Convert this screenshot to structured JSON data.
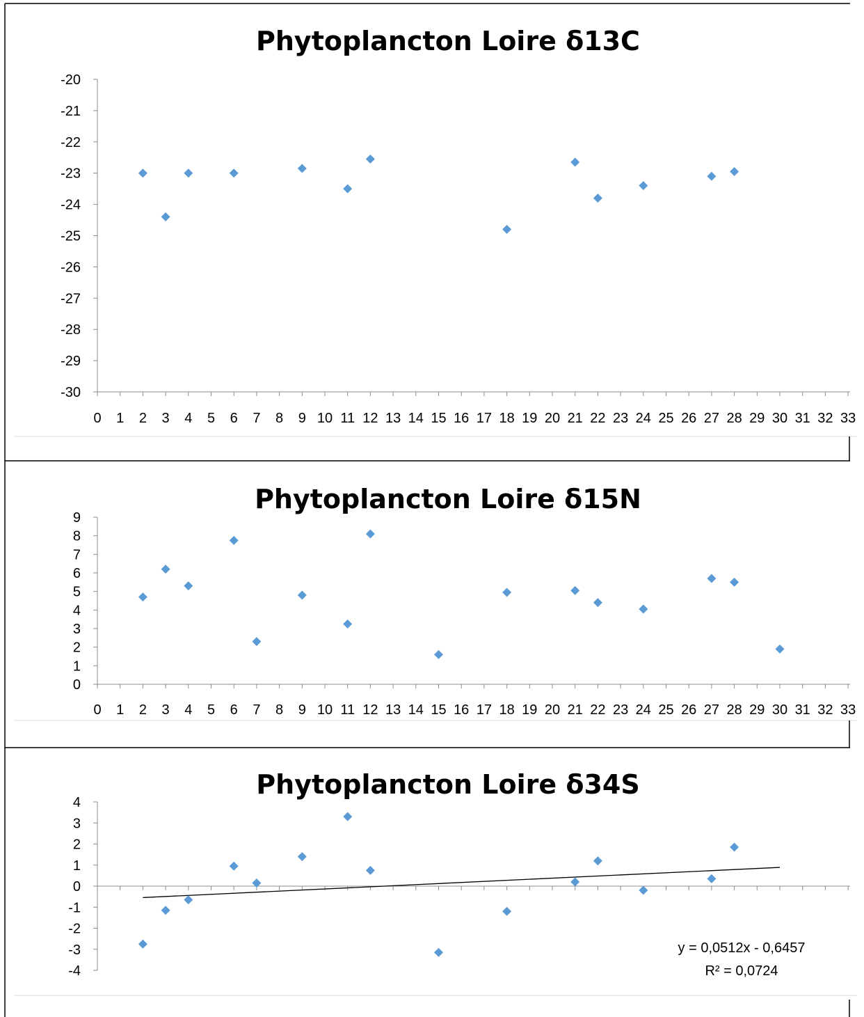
{
  "chart_data": [
    {
      "type": "scatter",
      "title": "Phytoplancton Loire δ13C",
      "xlim": [
        0,
        33
      ],
      "ylim": [
        -30,
        -20
      ],
      "xticks": [
        0,
        1,
        2,
        3,
        4,
        5,
        6,
        7,
        8,
        9,
        10,
        11,
        12,
        13,
        14,
        15,
        16,
        17,
        18,
        19,
        20,
        21,
        22,
        23,
        24,
        25,
        26,
        27,
        28,
        29,
        30,
        31,
        32,
        33
      ],
      "yticks": [
        -20,
        -21,
        -22,
        -23,
        -24,
        -25,
        -26,
        -27,
        -28,
        -29,
        -30
      ],
      "marker_color": "#5B9BD5",
      "series": [
        {
          "x": [
            2,
            3,
            4,
            6,
            9,
            11,
            12,
            18,
            21,
            22,
            24,
            27,
            28
          ],
          "y": [
            -23.0,
            -24.4,
            -23.0,
            -23.0,
            -22.85,
            -23.5,
            -22.55,
            -24.8,
            -22.65,
            -23.8,
            -23.4,
            -23.1,
            -22.95
          ]
        }
      ]
    },
    {
      "type": "scatter",
      "title": "Phytoplancton Loire δ15N",
      "xlim": [
        0,
        33
      ],
      "ylim": [
        0,
        9
      ],
      "xticks": [
        0,
        1,
        2,
        3,
        4,
        5,
        6,
        7,
        8,
        9,
        10,
        11,
        12,
        13,
        14,
        15,
        16,
        17,
        18,
        19,
        20,
        21,
        22,
        23,
        24,
        25,
        26,
        27,
        28,
        29,
        30,
        31,
        32,
        33
      ],
      "yticks": [
        9,
        8,
        7,
        6,
        5,
        4,
        3,
        2,
        1,
        0
      ],
      "marker_color": "#5B9BD5",
      "series": [
        {
          "x": [
            2,
            3,
            4,
            6,
            7,
            9,
            11,
            12,
            15,
            18,
            21,
            22,
            24,
            27,
            28,
            30
          ],
          "y": [
            4.7,
            6.2,
            5.3,
            7.75,
            2.3,
            4.8,
            3.25,
            8.1,
            1.6,
            4.95,
            5.05,
            4.4,
            4.05,
            5.7,
            5.5,
            1.9
          ]
        }
      ]
    },
    {
      "type": "scatter",
      "title": "Phytoplancton Loire δ34S",
      "xlim": [
        0,
        33
      ],
      "ylim": [
        -4,
        4
      ],
      "yticks": [
        4,
        3,
        2,
        1,
        0,
        -1,
        -2,
        -3,
        -4
      ],
      "marker_color": "#5B9BD5",
      "series": [
        {
          "x": [
            2,
            3,
            4,
            6,
            7,
            9,
            11,
            12,
            15,
            18,
            21,
            22,
            24,
            27,
            28
          ],
          "y": [
            -2.75,
            -1.15,
            -0.65,
            0.95,
            0.15,
            1.4,
            3.3,
            0.75,
            -3.15,
            -1.2,
            0.2,
            1.2,
            -0.2,
            0.35,
            1.85
          ]
        }
      ],
      "trendline": {
        "slope": 0.0512,
        "intercept": -0.6457,
        "x_range": [
          2,
          30
        ]
      },
      "trend_equation": "y = 0,0512x - 0,6457",
      "trend_r2": "R² = 0,0724"
    }
  ]
}
